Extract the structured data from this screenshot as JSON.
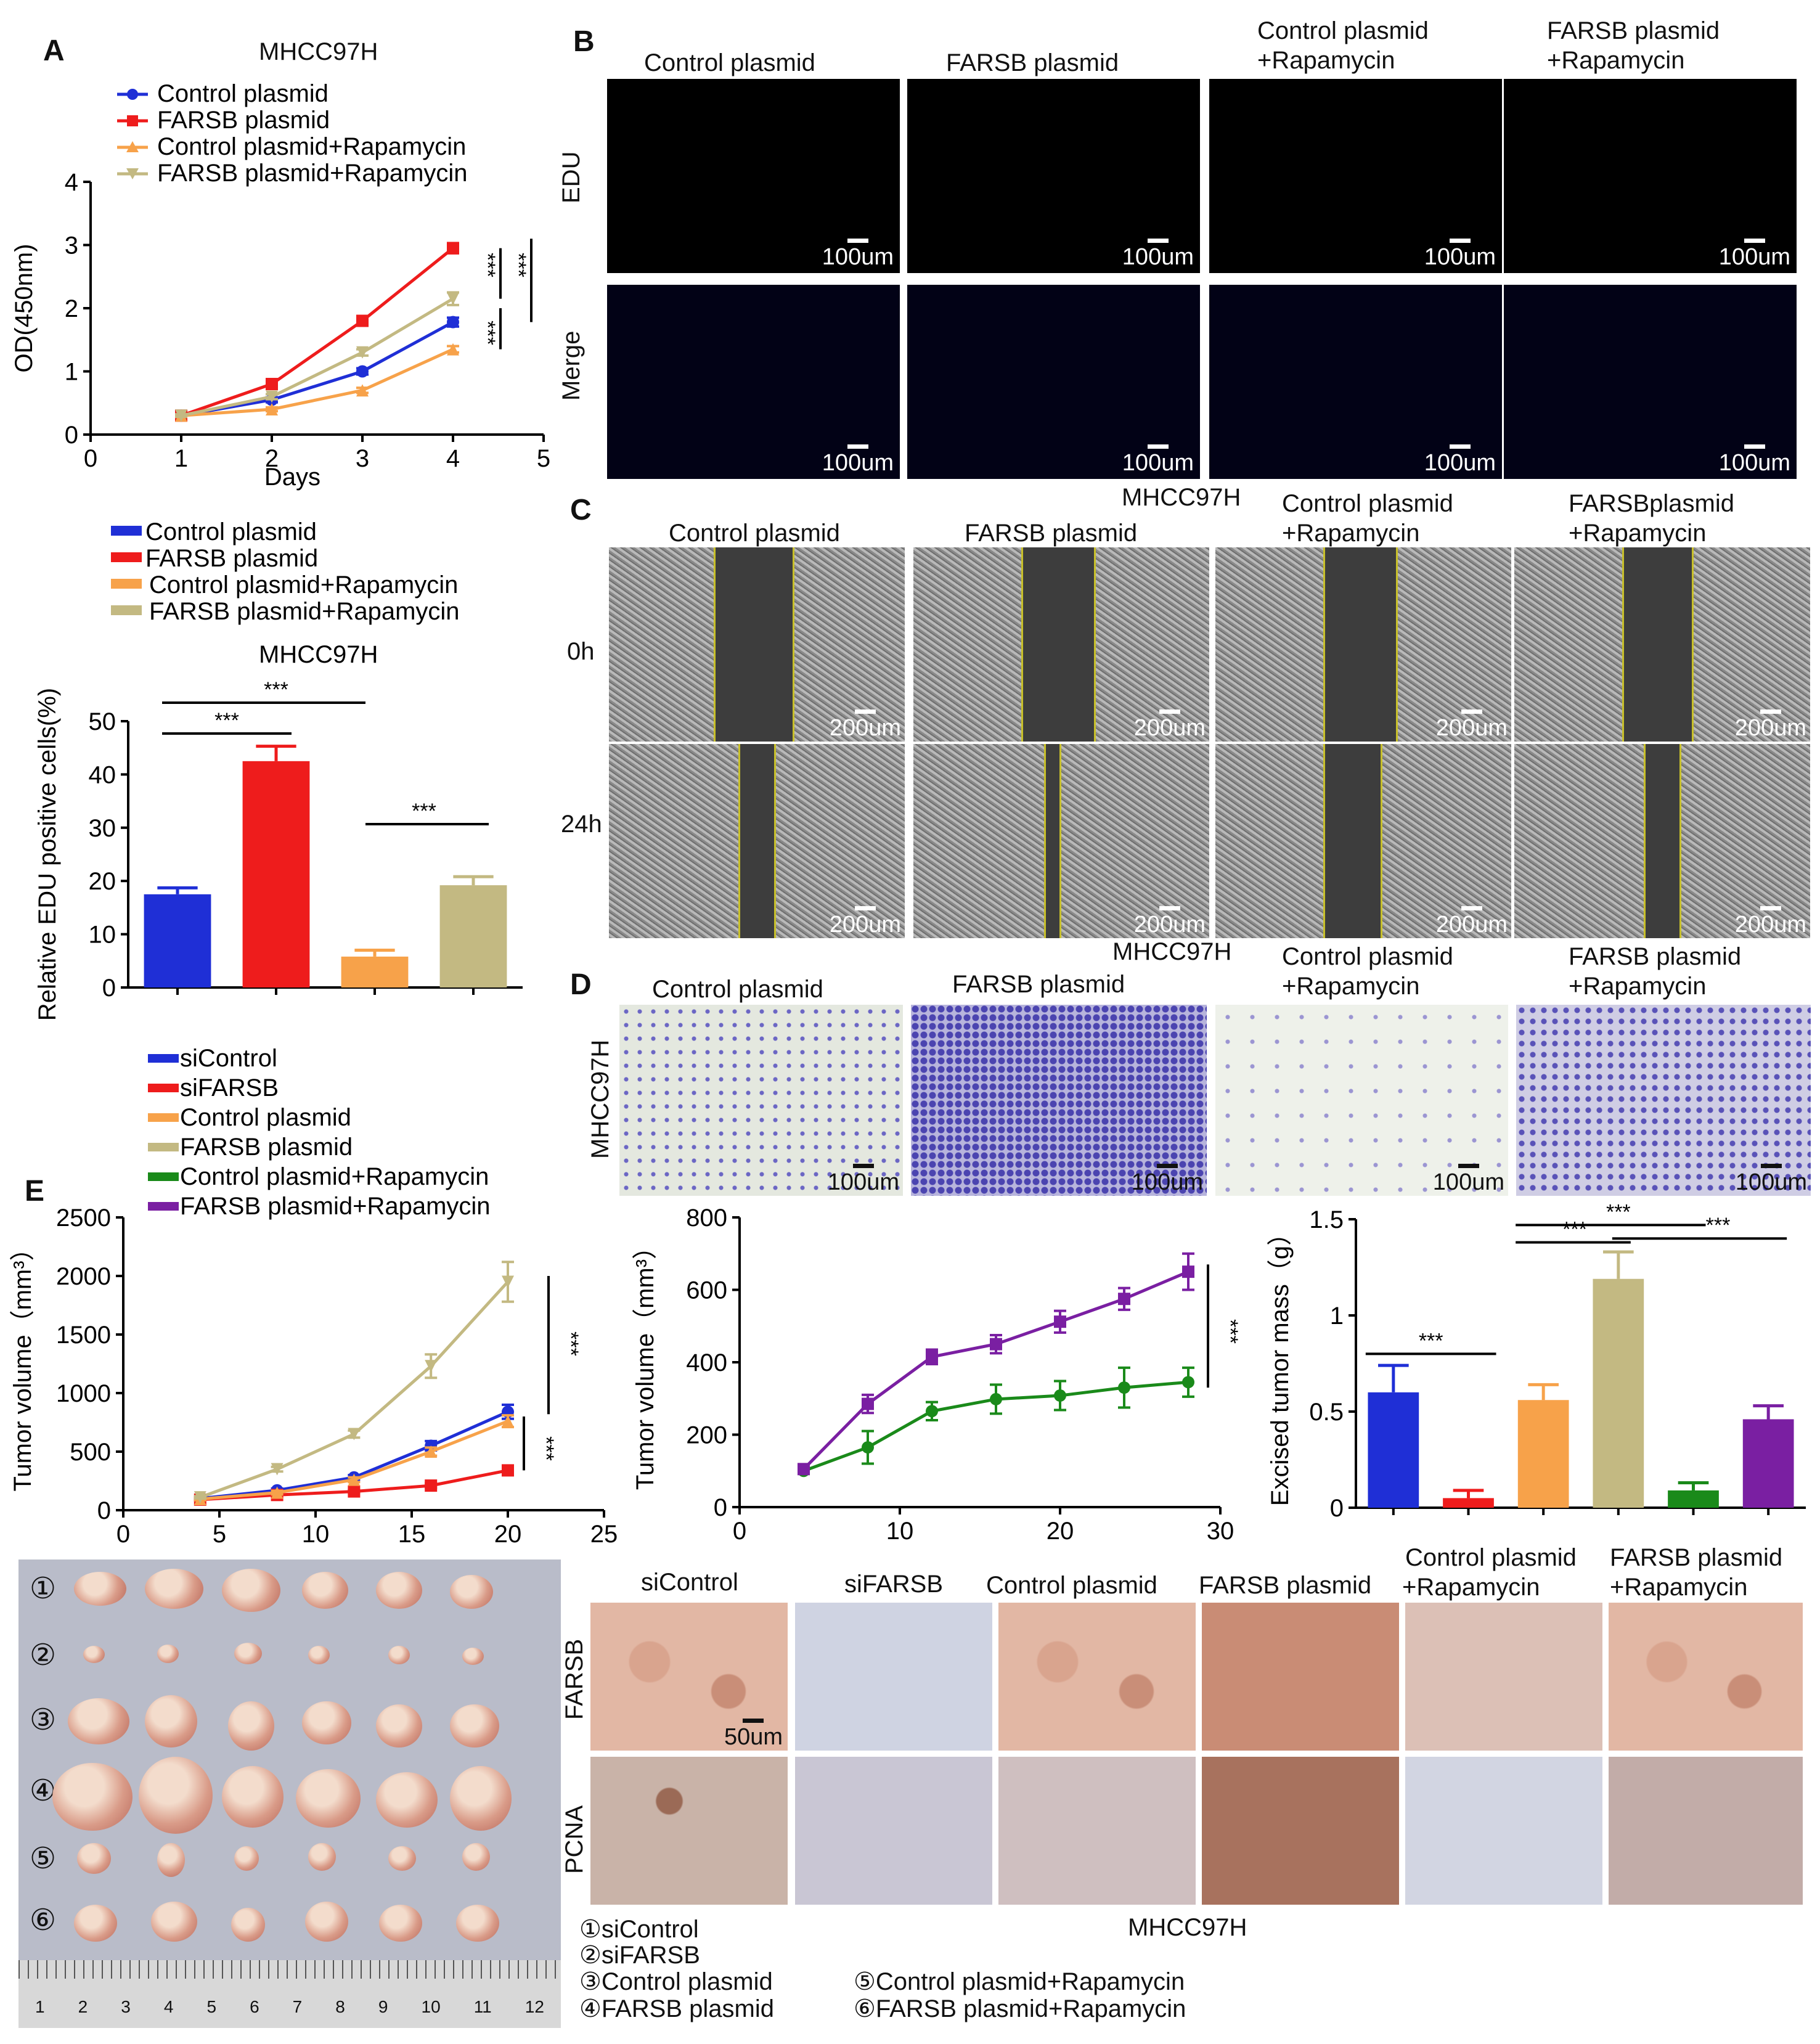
{
  "panel_letters": {
    "a": "A",
    "b": "B",
    "c": "C",
    "d": "D",
    "e": "E"
  },
  "cell_line": "MHCC97H",
  "groups4": [
    "Control plasmid",
    "FARSB plasmid",
    "Control plasmid+Rapamycin",
    "FARSB plasmid+Rapamycin"
  ],
  "colors": {
    "blue": "#1f2fd6",
    "red": "#ee1c1c",
    "orange": "#f7a24a",
    "tan": "#c3b982",
    "green": "#1a8a1a",
    "purple": "#7a1fa2"
  },
  "sig": "***",
  "panel_b": {
    "col_titles": [
      "Control plasmid",
      "FARSB plasmid",
      "Control plasmid",
      "FARSB plasmid"
    ],
    "col_sub": [
      "+Rapamycin",
      "+Rapamycin"
    ],
    "row_labels": [
      "EDU",
      "Merge"
    ],
    "scale": "100um"
  },
  "panel_c": {
    "col_titles": [
      "Control plasmid",
      "FARSB plasmid",
      "Control plasmid",
      "FARSBplasmid"
    ],
    "col_sub": [
      "+Rapamycin",
      "+Rapamycin"
    ],
    "row_labels": [
      "0h",
      "24h"
    ],
    "scale": "200um"
  },
  "panel_d": {
    "col_titles": [
      "Control plasmid",
      "FARSB plasmid",
      "Control plasmid",
      "FARSB plasmid"
    ],
    "col_sub": [
      "+Rapamycin",
      "+Rapamycin"
    ],
    "row_label": "MHCC97H",
    "scale": "100um"
  },
  "legend_e": [
    "siControl",
    "siFARSB",
    "Control plasmid",
    "FARSB plasmid",
    "Control plasmid+Rapamycin",
    "FARSB plasmid+Rapamycin"
  ],
  "ihc": {
    "col_titles": [
      "siControl",
      "siFARSB",
      "Control plasmid",
      "FARSB plasmid",
      "Control plasmid",
      "FARSB plasmid"
    ],
    "col_sub": [
      "+Rapamycin",
      "+Rapamycin"
    ],
    "row_labels": [
      "FARSB",
      "PCNA"
    ],
    "scale": "50um"
  },
  "tumor_legend": [
    "①siControl",
    "②siFARSB",
    "③Control plasmid",
    "④FARSB plasmid",
    "⑤Control plasmid+Rapamycin",
    "⑥FARSB plasmid+Rapamycin"
  ],
  "tumor_rows": [
    "①",
    "②",
    "③",
    "④",
    "⑤",
    "⑥"
  ],
  "ruler_ticks": [
    "1",
    "2",
    "3",
    "4",
    "5",
    "6",
    "7",
    "8",
    "9",
    "10",
    "11",
    "12"
  ],
  "chart_data": [
    {
      "id": "cck8",
      "type": "line",
      "title": "MHCC97H",
      "xlabel": "Days",
      "ylabel": "OD(450nm)",
      "xlim": [
        0,
        5
      ],
      "ylim": [
        0,
        4
      ],
      "xticks": [
        0,
        1,
        2,
        3,
        4,
        5
      ],
      "yticks": [
        0,
        1,
        2,
        3,
        4
      ],
      "x": [
        1,
        2,
        3,
        4
      ],
      "series": [
        {
          "name": "Control plasmid",
          "values": [
            0.3,
            0.55,
            1.0,
            1.78
          ],
          "err": [
            0.02,
            0.04,
            0.05,
            0.07
          ],
          "marker": "circle",
          "color": "#1f2fd6"
        },
        {
          "name": "FARSB plasmid",
          "values": [
            0.3,
            0.8,
            1.8,
            2.95
          ],
          "err": [
            0.02,
            0.04,
            0.05,
            0.08
          ],
          "marker": "square",
          "color": "#ee1c1c"
        },
        {
          "name": "Control plasmid+Rapamycin",
          "values": [
            0.3,
            0.4,
            0.7,
            1.35
          ],
          "err": [
            0.02,
            0.03,
            0.04,
            0.05
          ],
          "marker": "triangle",
          "color": "#f7a24a"
        },
        {
          "name": "FARSB plasmid+Rapamycin",
          "values": [
            0.3,
            0.6,
            1.3,
            2.15
          ],
          "err": [
            0.02,
            0.04,
            0.05,
            0.1
          ],
          "marker": "tri-down",
          "color": "#c3b982"
        }
      ],
      "annotations": [
        "***",
        "***",
        "***"
      ]
    },
    {
      "id": "edu",
      "type": "bar",
      "title": "MHCC97H",
      "ylabel": "Relative EDU positive cells(%)",
      "ylim": [
        0,
        50
      ],
      "yticks": [
        0,
        10,
        20,
        30,
        40,
        50
      ],
      "categories": [
        "Control plasmid",
        "FARSB plasmid",
        "Control plasmid+Rapamycin",
        "FARSB plasmid+Rapamycin"
      ],
      "values": [
        17.5,
        42.5,
        5.8,
        19.2
      ],
      "err": [
        1.2,
        2.8,
        1.2,
        1.6
      ],
      "colors": [
        "#1f2fd6",
        "#ee1c1c",
        "#f7a24a",
        "#c3b982"
      ],
      "annotations": [
        "***",
        "***",
        "***"
      ]
    },
    {
      "id": "tv1",
      "type": "line",
      "ylabel": "Tumor volume（mm³）",
      "xlim": [
        0,
        25
      ],
      "ylim": [
        0,
        2500
      ],
      "xticks": [
        0,
        5,
        10,
        15,
        20,
        25
      ],
      "yticks": [
        0,
        500,
        1000,
        1500,
        2000,
        2500
      ],
      "x": [
        4,
        8,
        12,
        16,
        20
      ],
      "series": [
        {
          "name": "siControl",
          "values": [
            100,
            170,
            280,
            550,
            840
          ],
          "err": [
            10,
            15,
            20,
            40,
            60
          ],
          "marker": "circle",
          "color": "#1f2fd6"
        },
        {
          "name": "siFARSB",
          "values": [
            90,
            130,
            160,
            210,
            340
          ],
          "err": [
            10,
            10,
            12,
            20,
            25
          ],
          "marker": "square",
          "color": "#ee1c1c"
        },
        {
          "name": "Control plasmid",
          "values": [
            95,
            150,
            260,
            500,
            760
          ],
          "err": [
            10,
            15,
            20,
            35,
            50
          ],
          "marker": "triangle",
          "color": "#f7a24a"
        },
        {
          "name": "FARSB plasmid",
          "values": [
            110,
            350,
            650,
            1230,
            1950
          ],
          "err": [
            10,
            20,
            30,
            100,
            170
          ],
          "marker": "tri-down",
          "color": "#c3b982"
        }
      ],
      "annotations": [
        "***",
        "***"
      ]
    },
    {
      "id": "tv2",
      "type": "line",
      "ylabel": "Tumor volume（mm³）",
      "xlim": [
        0,
        30
      ],
      "ylim": [
        0,
        800
      ],
      "xticks": [
        0,
        10,
        20,
        30
      ],
      "yticks": [
        0,
        200,
        400,
        600,
        800
      ],
      "x": [
        4,
        8,
        12,
        16,
        20,
        24,
        28
      ],
      "series": [
        {
          "name": "Control plasmid+Rapamycin",
          "values": [
            100,
            165,
            265,
            298,
            308,
            330,
            345
          ],
          "err": [
            8,
            45,
            25,
            40,
            40,
            55,
            40
          ],
          "marker": "circle",
          "color": "#1a8a1a"
        },
        {
          "name": "FARSB plasmid+Rapamycin",
          "values": [
            105,
            285,
            415,
            450,
            512,
            575,
            650
          ],
          "err": [
            8,
            25,
            20,
            25,
            30,
            30,
            50
          ],
          "marker": "square",
          "color": "#7a1fa2"
        }
      ],
      "annotations": [
        "***"
      ]
    },
    {
      "id": "mass",
      "type": "bar",
      "ylabel": "Excised tumor mass（g）",
      "ylim": [
        0,
        1.5
      ],
      "yticks": [
        0,
        0.5,
        1,
        1.5
      ],
      "categories": [
        "siControl",
        "siFARSB",
        "Control plasmid",
        "FARSB plasmid",
        "Control plasmid+Rapamycin",
        "FARSB plasmid+Rapamycin"
      ],
      "values": [
        0.6,
        0.05,
        0.56,
        1.19,
        0.09,
        0.46
      ],
      "err": [
        0.14,
        0.04,
        0.08,
        0.14,
        0.04,
        0.07
      ],
      "colors": [
        "#1f2fd6",
        "#ee1c1c",
        "#f7a24a",
        "#c3b982",
        "#1a8a1a",
        "#7a1fa2"
      ],
      "annotations": [
        "***",
        "***",
        "***",
        "***"
      ]
    }
  ]
}
